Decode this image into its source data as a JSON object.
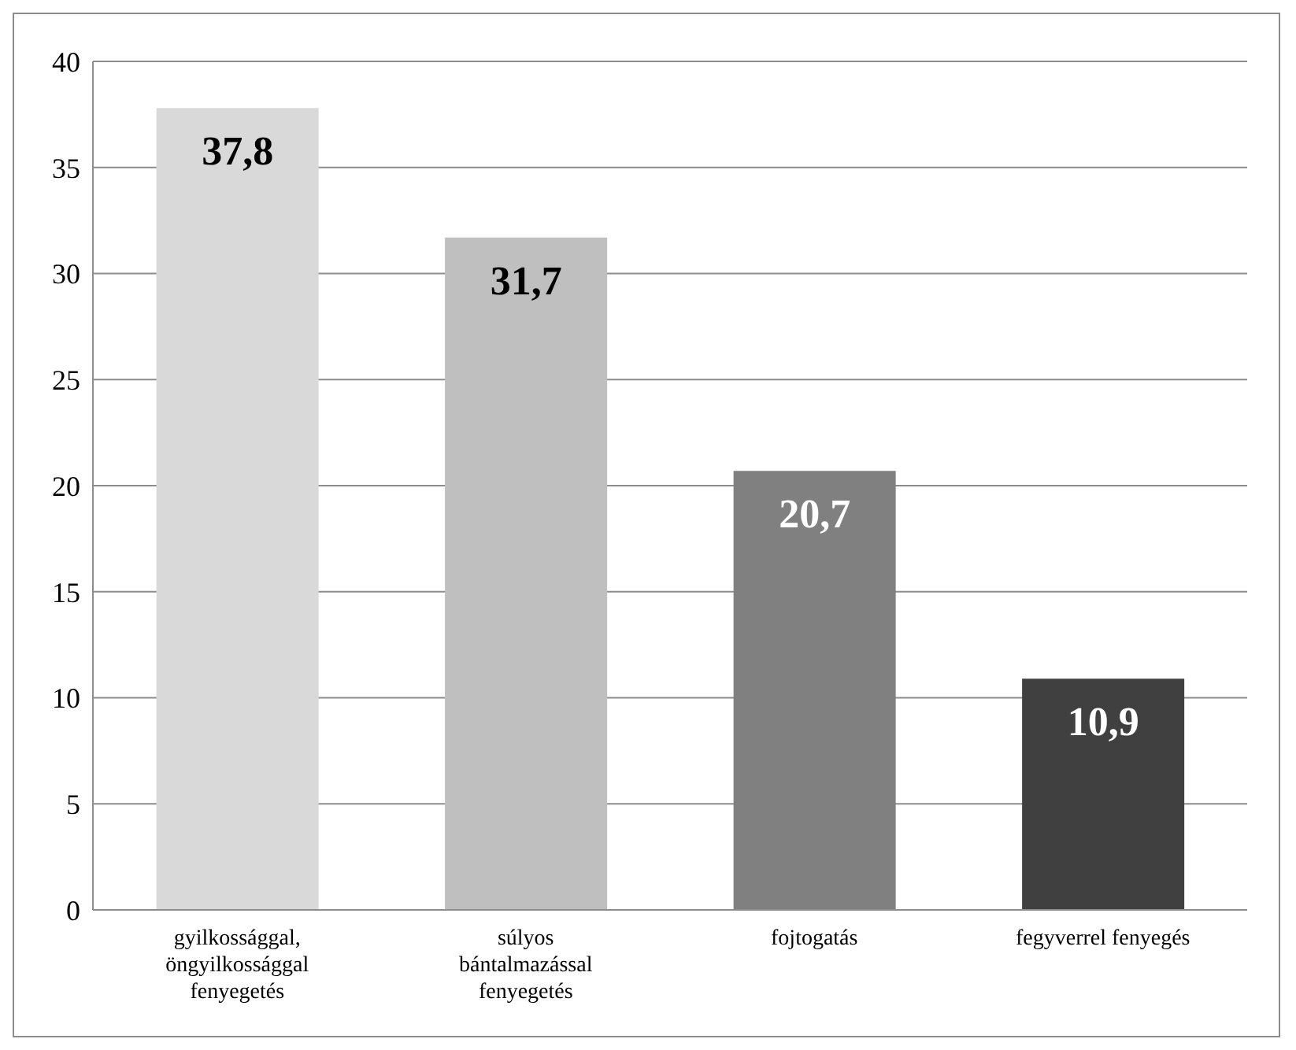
{
  "chart_data": {
    "type": "bar",
    "categories": [
      "gyilkossággal, öngyilkossággal fenyegetés",
      "súlyos bántalmazással fenyegetés",
      "fojtogatás",
      "fegyverrel fenyegés"
    ],
    "values": [
      37.8,
      31.7,
      20.7,
      10.9
    ],
    "colors": [
      "#d9d9d9",
      "#bfbfbf",
      "#808080",
      "#404040"
    ],
    "value_labels": [
      "37,8",
      "31,7",
      "20,7",
      "10,9"
    ],
    "ylim": [
      0,
      40
    ],
    "yticks": [
      0,
      5,
      10,
      15,
      20,
      25,
      30,
      35,
      40
    ],
    "grid": "y"
  }
}
